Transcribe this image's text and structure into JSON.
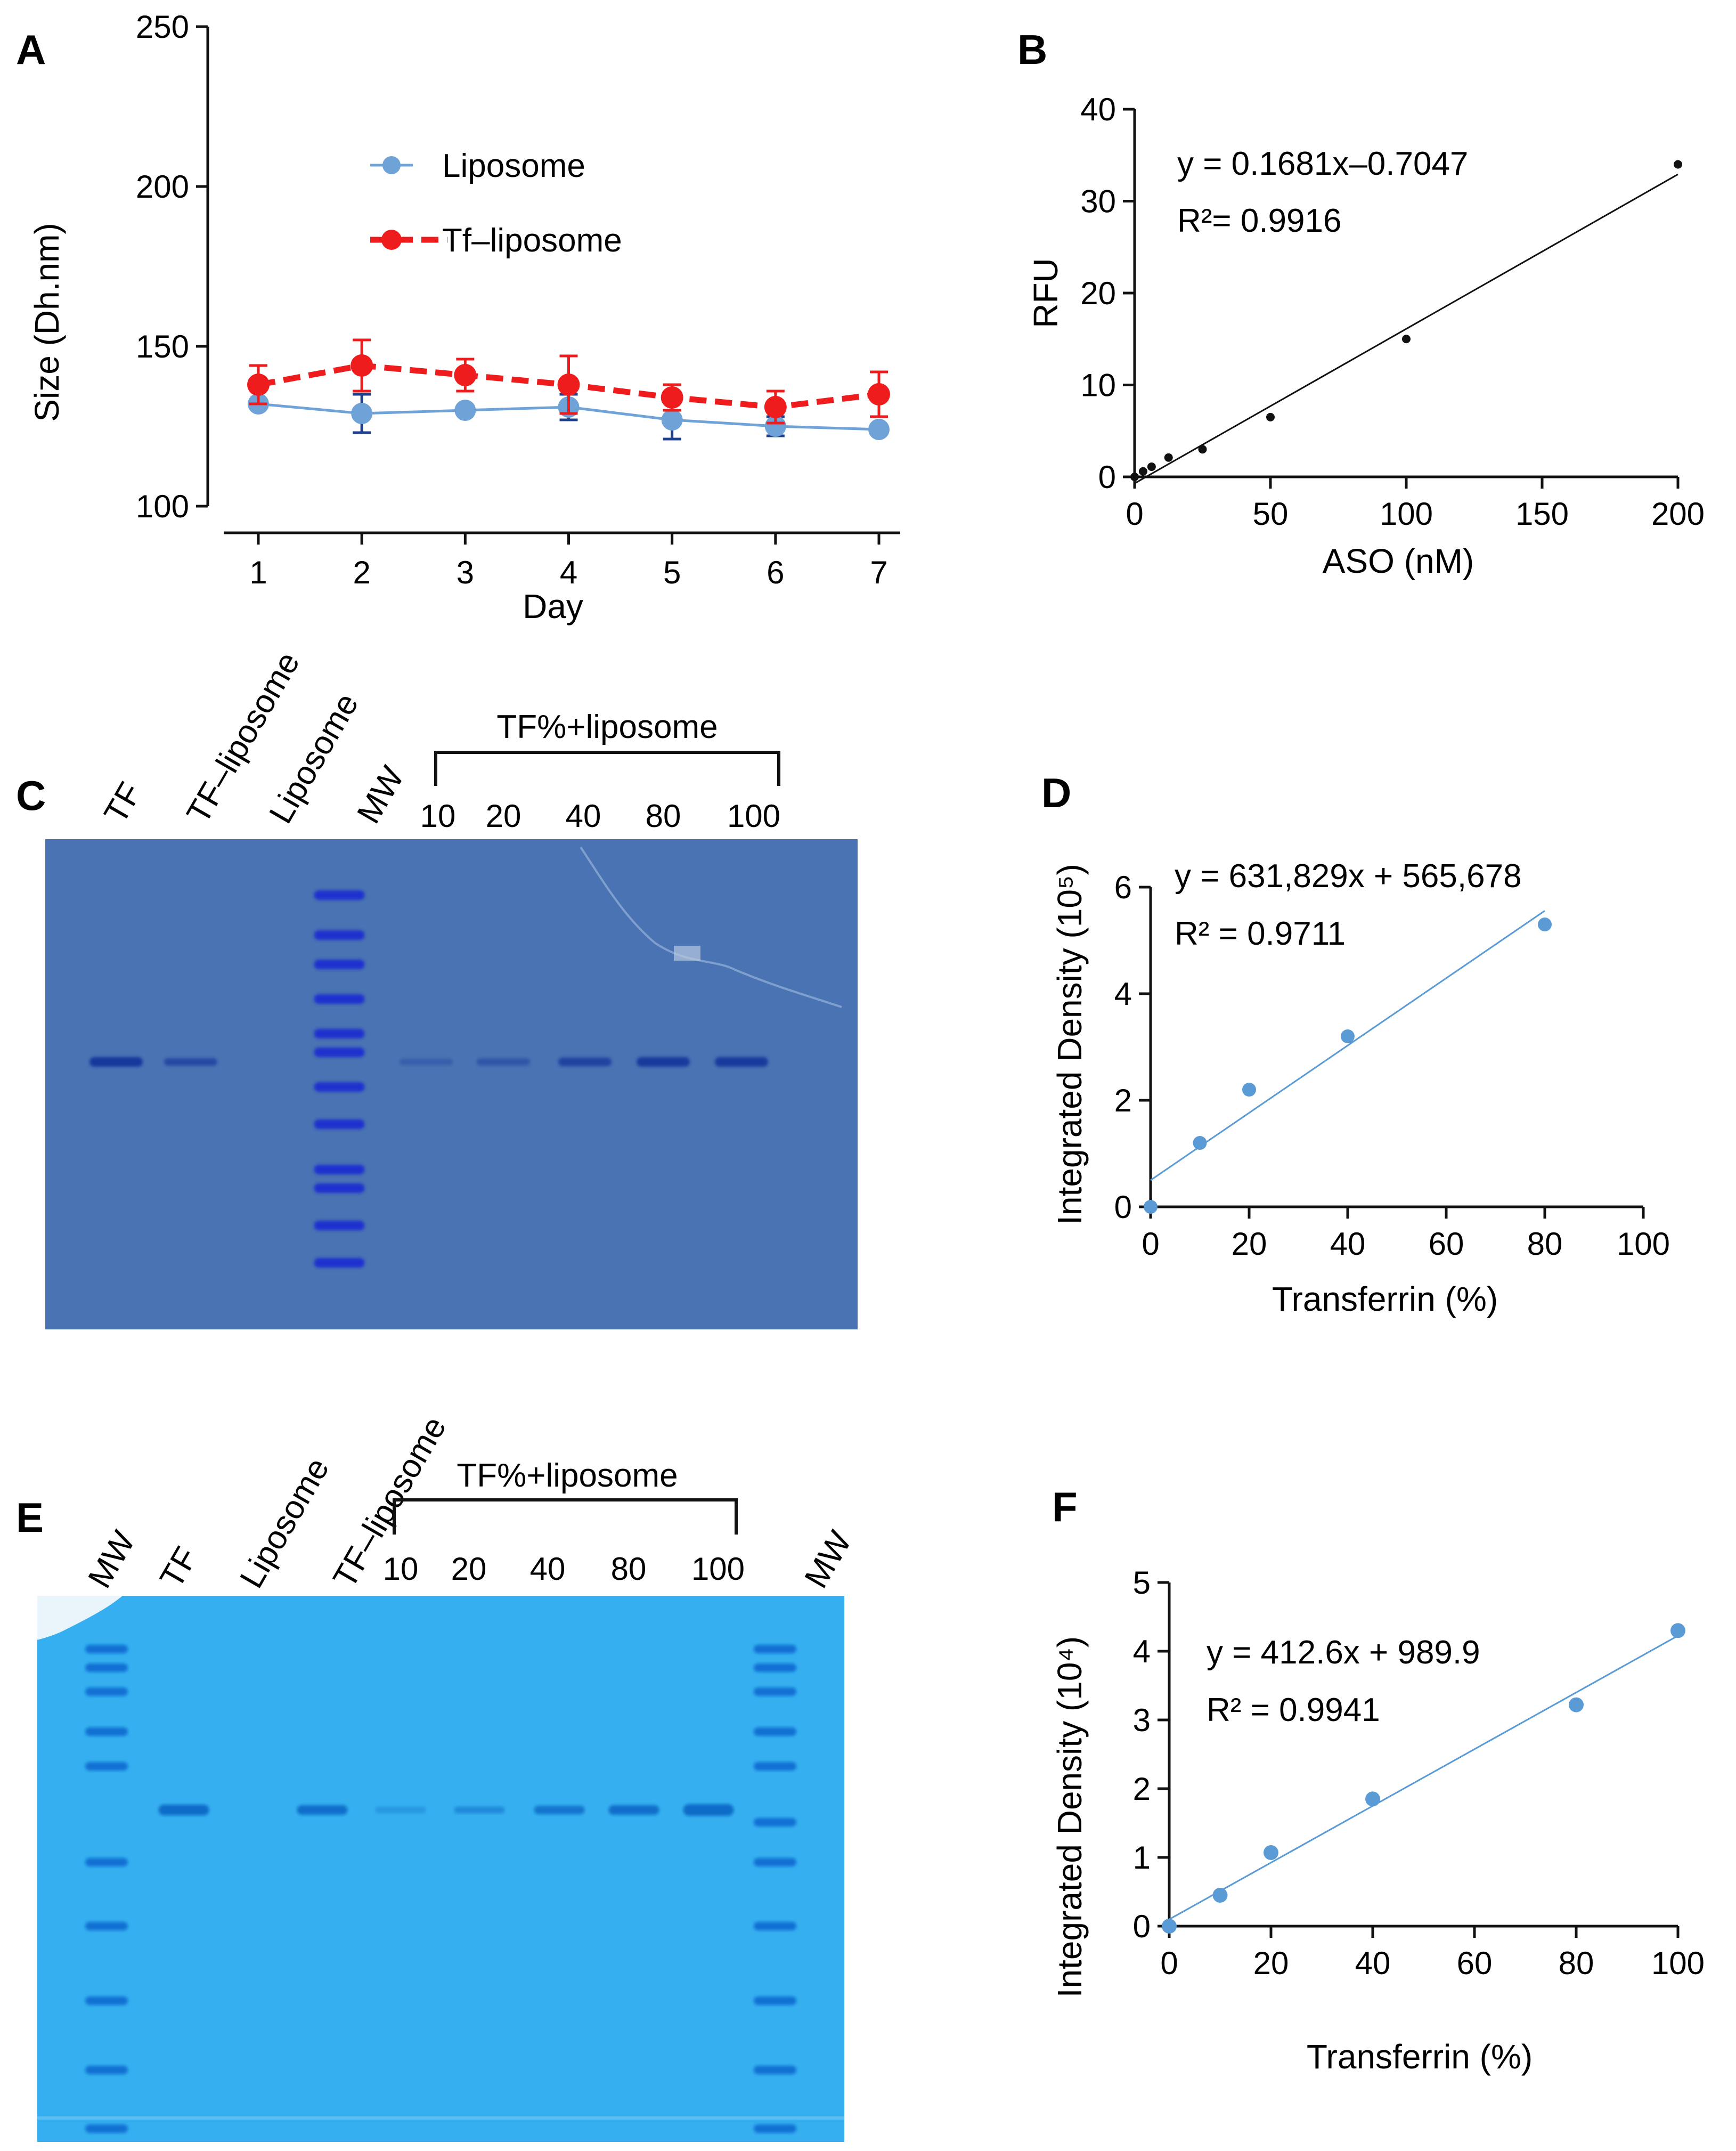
{
  "panels": [
    {
      "id": "A",
      "label": "A"
    },
    {
      "id": "B",
      "label": "B"
    },
    {
      "id": "C",
      "label": "C"
    },
    {
      "id": "D",
      "label": "D"
    },
    {
      "id": "E",
      "label": "E"
    },
    {
      "id": "F",
      "label": "F"
    }
  ],
  "chart_data": [
    {
      "panel": "A",
      "type": "line",
      "xlabel": "Day",
      "ylabel": "Size (Dh.nm)",
      "x": [
        1,
        2,
        3,
        4,
        5,
        6,
        7
      ],
      "xlim": [
        0.5,
        7.5
      ],
      "ylim": [
        100,
        250
      ],
      "xticks": [
        1,
        2,
        3,
        4,
        5,
        6,
        7
      ],
      "yticks": [
        100,
        150,
        200,
        250
      ],
      "legend_position": "upper-center",
      "series": [
        {
          "name": "Liposome",
          "color": "#6fa3d8",
          "style": "solid",
          "values": [
            132,
            129,
            130,
            131,
            127,
            125,
            124
          ],
          "err": [
            0,
            6,
            0,
            4,
            6,
            3,
            0
          ],
          "errcolor": "#1f3f8f"
        },
        {
          "name": "Tf–liposome",
          "color": "#ee1c1c",
          "style": "dashed",
          "values": [
            138,
            144,
            141,
            138,
            134,
            131,
            135
          ],
          "err": [
            6,
            8,
            5,
            9,
            4,
            5,
            7
          ],
          "errcolor": "#ee1c1c"
        }
      ]
    },
    {
      "panel": "B",
      "type": "scatter",
      "xlabel": "ASO (nM)",
      "ylabel": "RFU",
      "xlim": [
        0,
        200
      ],
      "ylim": [
        0,
        40
      ],
      "xticks": [
        0,
        50,
        100,
        150,
        200
      ],
      "yticks": [
        0,
        10,
        20,
        30,
        40
      ],
      "equation": "y = 0.1681x–0.7047",
      "r2": "R²= 0.9916",
      "points": {
        "x": [
          0,
          3.125,
          6.25,
          12.5,
          25,
          50,
          100,
          200
        ],
        "y": [
          0,
          0.6,
          1.1,
          2.1,
          3.0,
          6.5,
          15.0,
          34.0
        ]
      },
      "fit": {
        "slope": 0.1681,
        "intercept": -0.7047,
        "x0": 0,
        "x1": 200
      },
      "color": "#111111"
    },
    {
      "panel": "D",
      "type": "scatter",
      "xlabel": "Transferrin (%)",
      "ylabel": "Integrated Density (10⁵)",
      "xlim": [
        0,
        100
      ],
      "ylim": [
        0,
        6
      ],
      "xticks": [
        0,
        20,
        40,
        60,
        80,
        100
      ],
      "yticks": [
        0,
        2,
        4,
        6
      ],
      "equation": "y = 631,829x + 565,678",
      "r2": "R² = 0.9711",
      "points": {
        "x": [
          0,
          10,
          20,
          40,
          80
        ],
        "y": [
          0,
          1.2,
          2.2,
          3.2,
          5.3
        ]
      },
      "fit": {
        "slope": 0.0632,
        "intercept": 0.5,
        "x0": 0,
        "x1": 80
      },
      "color": "#5b9bd5"
    },
    {
      "panel": "F",
      "type": "scatter",
      "xlabel": "Transferrin (%)",
      "ylabel": "Integrated Density (10⁴)",
      "xlim": [
        0,
        100
      ],
      "ylim": [
        0,
        5
      ],
      "xticks": [
        0,
        20,
        40,
        60,
        80,
        100
      ],
      "yticks": [
        0,
        1,
        2,
        3,
        4,
        5
      ],
      "equation": "y = 412.6x + 989.9",
      "r2": "R² = 0.9941",
      "points": {
        "x": [
          0,
          10,
          20,
          40,
          80,
          100
        ],
        "y": [
          0,
          0.45,
          1.07,
          1.85,
          3.22,
          4.3
        ]
      },
      "fit": {
        "slope": 0.04126,
        "intercept": 0.099,
        "x0": 0,
        "x1": 100
      },
      "color": "#5b9bd5"
    }
  ],
  "gels": [
    {
      "panel": "C",
      "lane_labels": [
        "TF",
        "TF–liposome",
        "Liposome",
        "MW"
      ],
      "bracket_title": "TF%+liposome",
      "bracket_labels": [
        "10",
        "20",
        "40",
        "80",
        "100"
      ],
      "colors": {
        "bg": "#4a73b3",
        "band": "#16389c",
        "ladder": "#1a2fd0"
      }
    },
    {
      "panel": "E",
      "lane_labels": [
        "MW",
        "TF",
        "Liposome",
        "TF–liposome",
        "MW"
      ],
      "bracket_title": "TF%+liposome",
      "bracket_labels": [
        "10",
        "20",
        "40",
        "80",
        "100"
      ],
      "colors": {
        "bg": "#36aff0",
        "band": "#0a6cc8",
        "ladder": "#0b6ad0"
      }
    }
  ]
}
